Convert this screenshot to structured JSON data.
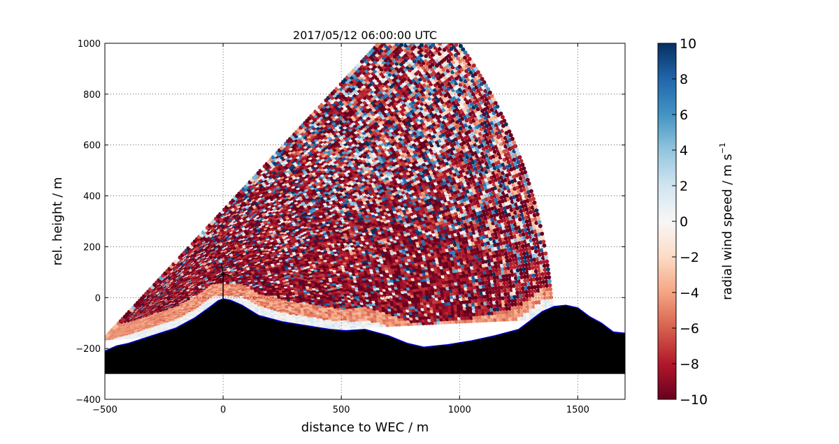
{
  "chart_data": {
    "type": "scatter",
    "title": "2017/05/12 06:00:00 UTC",
    "xlabel": "distance to WEC / m",
    "ylabel": "rel. height / m",
    "xlim": [
      -500,
      1700
    ],
    "ylim": [
      -400,
      1000
    ],
    "x_ticks": [
      -500,
      0,
      500,
      1000,
      1500
    ],
    "y_ticks": [
      -400,
      -200,
      0,
      200,
      400,
      600,
      800,
      1000
    ],
    "grid": true,
    "colorbar": {
      "label_main": "radial wind speed / m s",
      "label_exponent": "−1",
      "range": [
        -10,
        10
      ],
      "ticks": [
        -10,
        -8,
        -6,
        -4,
        -2,
        0,
        2,
        4,
        6,
        8,
        10
      ],
      "colormap": "RdBu",
      "color_stops": [
        "#67001f",
        "#b2182b",
        "#d6604d",
        "#f4a582",
        "#fddbc7",
        "#f7f7f7",
        "#d1e5f0",
        "#92c5de",
        "#4393c3",
        "#2166ac",
        "#053061"
      ]
    },
    "lidar_scan": {
      "origin": [
        -500,
        -160
      ],
      "range_min_m": 0,
      "range_max_m": 1900,
      "elevation_min_deg": 2.5,
      "elevation_max_deg": 45,
      "description_values": "radial wind speed mostly between -10 and 10 m/s; near-ground weak values (about -1 to 2 m/s), mid-levels strongly negative (about -8 to -10 m/s), upper levels noisy ±10 m/s"
    },
    "terrain": {
      "x": [
        -500,
        -450,
        -400,
        -300,
        -200,
        -120,
        -60,
        -20,
        0,
        30,
        80,
        150,
        250,
        350,
        450,
        520,
        600,
        700,
        780,
        850,
        950,
        1050,
        1150,
        1250,
        1300,
        1350,
        1400,
        1450,
        1500,
        1550,
        1600,
        1650,
        1700
      ],
      "y": [
        -210,
        -190,
        -180,
        -150,
        -120,
        -80,
        -40,
        -12,
        -5,
        -10,
        -30,
        -70,
        -95,
        -110,
        -125,
        -130,
        -125,
        -150,
        -180,
        -195,
        -185,
        -170,
        -150,
        -125,
        -90,
        -55,
        -35,
        -30,
        -40,
        -75,
        -100,
        -135,
        -140
      ],
      "base": -300,
      "outline_color": "#0000cc",
      "fill_color": "#000000"
    },
    "turbine": {
      "x": 0,
      "hub_height_m": 100,
      "rotor_radius_m": 40
    }
  }
}
